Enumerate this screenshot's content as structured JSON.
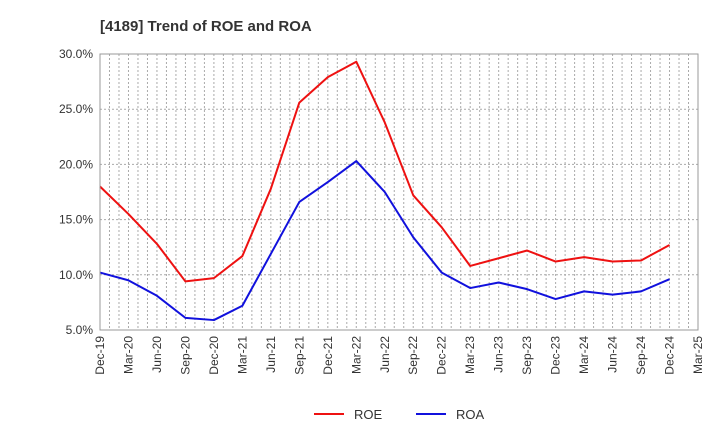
{
  "chart_data": {
    "type": "line",
    "title": "[4189]  Trend of ROE and ROA",
    "xlabel": "",
    "ylabel": "",
    "ylim": [
      5.0,
      30.0
    ],
    "y_ticks": [
      "5.0%",
      "10.0%",
      "15.0%",
      "20.0%",
      "25.0%",
      "30.0%"
    ],
    "y_tick_values": [
      5,
      10,
      15,
      20,
      25,
      30
    ],
    "categories": [
      "Dec-19",
      "Mar-20",
      "Jun-20",
      "Sep-20",
      "Dec-20",
      "Mar-21",
      "Jun-21",
      "Sep-21",
      "Dec-21",
      "Mar-22",
      "Jun-22",
      "Sep-22",
      "Dec-22",
      "Mar-23",
      "Jun-23",
      "Sep-23",
      "Dec-23",
      "Mar-24",
      "Jun-24",
      "Sep-24",
      "Dec-24",
      "Mar-25"
    ],
    "grid": true,
    "legend_position": "bottom-center",
    "series": [
      {
        "name": "ROE",
        "color": "#ee1111",
        "values": [
          18.0,
          15.5,
          12.8,
          9.4,
          9.7,
          11.7,
          17.8,
          25.6,
          27.9,
          29.3,
          23.8,
          17.2,
          14.3,
          10.8,
          11.5,
          12.2,
          11.2,
          11.6,
          11.2,
          11.3,
          12.7,
          null
        ]
      },
      {
        "name": "ROA",
        "color": "#1111dd",
        "values": [
          10.2,
          9.5,
          8.1,
          6.1,
          5.9,
          7.2,
          11.9,
          16.6,
          18.4,
          20.3,
          17.5,
          13.4,
          10.2,
          8.8,
          9.3,
          8.7,
          7.8,
          8.5,
          8.2,
          8.5,
          9.6,
          null
        ]
      }
    ]
  }
}
